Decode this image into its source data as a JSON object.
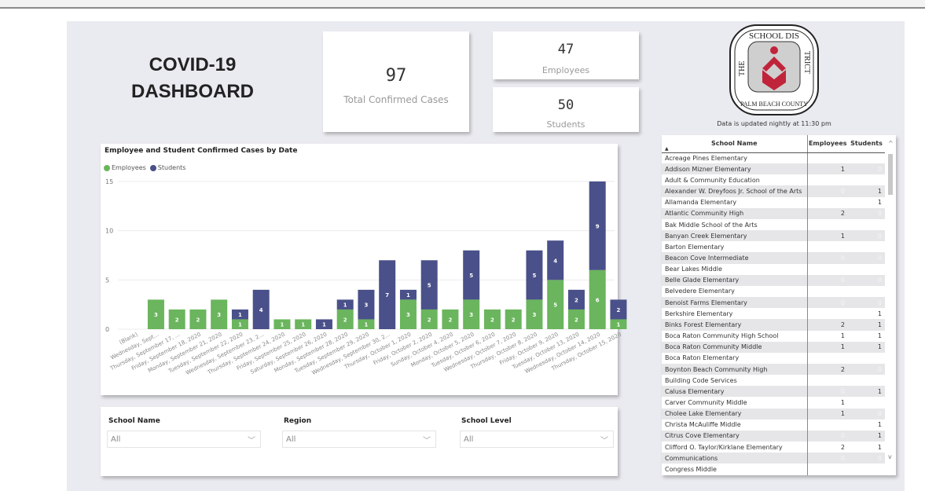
{
  "header": {
    "title_line1": "COVID-19",
    "title_line2": "DASHBOARD"
  },
  "kpis": {
    "total": {
      "value": "97",
      "label": "Total Confirmed Cases"
    },
    "employees": {
      "value": "47",
      "label": "Employees"
    },
    "students": {
      "value": "50",
      "label": "Students"
    }
  },
  "logo": {
    "text_top": "THE SCHOOL DISTRICT",
    "text_bottom": "PALM BEACH COUNTY",
    "color": "#c0243a"
  },
  "updated_note": "Data is updated nightly at 11:30 pm",
  "colors": {
    "employees": "#6ab55d",
    "students": "#4a5089"
  },
  "chart_data": {
    "type": "bar",
    "stacked": true,
    "title": "Employee and Student Confirmed Cases by Date",
    "legend_position": "top-left",
    "grid": true,
    "ylim": [
      0,
      15
    ],
    "yticks": [
      0,
      5,
      10,
      15
    ],
    "categories": [
      "(Blank)",
      "Wednesday, Sept...",
      "Thursday, September 17, ...",
      "Friday, September 18, 2020",
      "Monday, September 21, 2020",
      "Tuesday, September 22, 2020",
      "Wednesday, September 23, 2...",
      "Thursday, September 24, 2020",
      "Friday, September 25, 2020",
      "Saturday, September 26, 2020",
      "Monday, September 28, 2020",
      "Tuesday, September 29, 2020",
      "Wednesday, September 30, 2...",
      "Thursday, October 1, 2020",
      "Friday, October 2, 2020",
      "Sunday, October 4, 2020",
      "Monday, October 5, 2020",
      "Tuesday, October 6, 2020",
      "Wednesday, October 7, 2020",
      "Thursday, October 8, 2020",
      "Friday, October 9, 2020",
      "Tuesday, October 13, 2020",
      "Wednesday, October 14, 2020",
      "Thursday, October 15, 2020"
    ],
    "series": [
      {
        "name": "Employees",
        "values": [
          0,
          3,
          2,
          2,
          3,
          1,
          0,
          1,
          1,
          0,
          2,
          1,
          0,
          3,
          2,
          2,
          3,
          2,
          2,
          3,
          5,
          2,
          6,
          1
        ]
      },
      {
        "name": "Students",
        "values": [
          0,
          0,
          0,
          0,
          0,
          1,
          4,
          0,
          0,
          1,
          1,
          3,
          7,
          1,
          5,
          0,
          5,
          0,
          0,
          5,
          4,
          2,
          9,
          2
        ]
      }
    ]
  },
  "filters": [
    {
      "label": "School Name",
      "value": "All"
    },
    {
      "label": "Region",
      "value": "All"
    },
    {
      "label": "School Level",
      "value": "All"
    }
  ],
  "table": {
    "headers": [
      "School Name",
      "Employees",
      "Students"
    ],
    "rows": [
      [
        "Acreage Pines Elementary",
        "",
        ""
      ],
      [
        "Addison Mizner Elementary",
        "1",
        "0"
      ],
      [
        "Adult & Community Education",
        "",
        ""
      ],
      [
        "Alexander W. Dreyfoos Jr. School of the Arts",
        "0",
        "1"
      ],
      [
        "Allamanda Elementary",
        "",
        "1"
      ],
      [
        "Atlantic Community High",
        "2",
        "0"
      ],
      [
        "Bak Middle School of the Arts",
        "",
        ""
      ],
      [
        "Banyan Creek Elementary",
        "1",
        "0"
      ],
      [
        "Barton Elementary",
        "",
        ""
      ],
      [
        "Beacon Cove Intermediate",
        "0",
        "0"
      ],
      [
        "Bear Lakes Middle",
        "",
        ""
      ],
      [
        "Belle Glade Elementary",
        "0",
        "0"
      ],
      [
        "Belvedere Elementary",
        "",
        ""
      ],
      [
        "Benoist Farms Elementary",
        "0",
        "0"
      ],
      [
        "Berkshire Elementary",
        "",
        "1"
      ],
      [
        "Binks Forest Elementary",
        "2",
        "1"
      ],
      [
        "Boca Raton Community High School",
        "1",
        "1"
      ],
      [
        "Boca Raton Community Middle",
        "1",
        "1"
      ],
      [
        "Boca Raton Elementary",
        "",
        ""
      ],
      [
        "Boynton Beach Community High",
        "2",
        "0"
      ],
      [
        "Building Code Services",
        "",
        ""
      ],
      [
        "Calusa Elementary",
        "0",
        "1"
      ],
      [
        "Carver Community Middle",
        "1",
        ""
      ],
      [
        "Cholee Lake Elementary",
        "1",
        "0"
      ],
      [
        "Christa McAuliffe Middle",
        "",
        "1"
      ],
      [
        "Citrus Cove Elementary",
        "0",
        "1"
      ],
      [
        "Clifford O. Taylor/Kirklane Elementary",
        "2",
        "1"
      ],
      [
        "Communications",
        "0",
        "0"
      ],
      [
        "Congress Middle",
        "",
        ""
      ]
    ]
  }
}
